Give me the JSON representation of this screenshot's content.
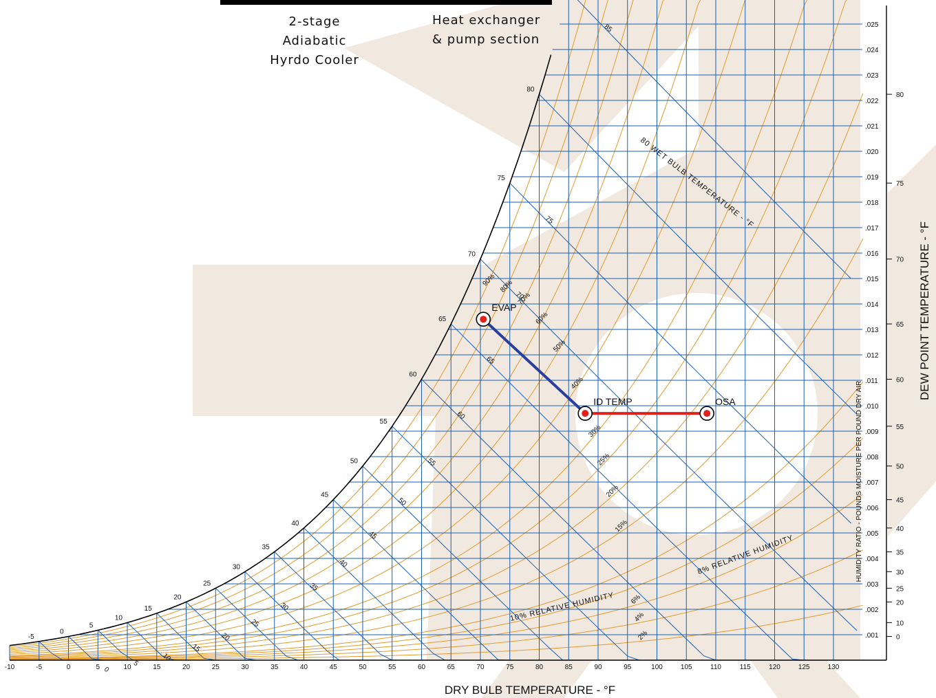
{
  "header": {
    "left_line1": "2-stage Adiabatic",
    "left_line2": "Hyrdo Cooler",
    "right_line1": "Heat exchanger",
    "right_line2": "& pump section"
  },
  "chart_data": {
    "type": "psychrometric",
    "xlabel": "DRY BULB TEMPERATURE - °F",
    "ylabel_right": "DEW POINT TEMPERATURE - °F",
    "ylabel_ratio": "HUMIDITY RATIO - POUNDS MOISTURE PER POUND DRY AIR",
    "wet_bulb_label": "80 WET BULB TEMPERATURE - °F",
    "rh_label": "10% RELATIVE HUMIDITY",
    "rh_label_8": "8% RELATIVE HUMIDITY",
    "xlim": [
      -10,
      135
    ],
    "ylim": [
      0,
      0.0262
    ],
    "x_ticks": [
      "-10",
      "-5",
      "0",
      "5",
      "10",
      "15",
      "20",
      "25",
      "30",
      "35",
      "40",
      "45",
      "50",
      "55",
      "60",
      "65",
      "70",
      "75",
      "80",
      "85",
      "90",
      "95",
      "100",
      "105",
      "110",
      "115",
      "120",
      "125",
      "130"
    ],
    "humidity_ratio_ticks": [
      ".001",
      ".002",
      ".003",
      ".004",
      ".005",
      ".006",
      ".007",
      ".008",
      ".009",
      ".010",
      ".011",
      ".012",
      ".013",
      ".014",
      ".015",
      ".016",
      ".017",
      ".018",
      ".019",
      ".020",
      ".021",
      ".022",
      ".023",
      ".024",
      ".025"
    ],
    "dew_point_ticks": [
      "0",
      "10",
      "20",
      "25",
      "30",
      "35",
      "40",
      "45",
      "50",
      "55",
      "60",
      "65",
      "70",
      "75",
      "80"
    ],
    "saturation_labels": [
      "-5",
      "0",
      "5",
      "10",
      "15",
      "20",
      "25",
      "30",
      "35",
      "40",
      "45",
      "50",
      "55",
      "60",
      "65",
      "70",
      "75",
      "80"
    ],
    "wet_bulb_line_labels": [
      "0",
      "5",
      "10",
      "15",
      "20",
      "25",
      "30",
      "35",
      "40",
      "45",
      "50",
      "55",
      "60",
      "65",
      "70",
      "75",
      "85"
    ],
    "rh_curves": [
      2,
      4,
      6,
      8,
      10,
      15,
      20,
      25,
      30,
      40,
      50,
      60,
      70,
      80,
      90
    ],
    "rh_curve_labels": [
      "2%",
      "4%",
      "6%",
      "15%",
      "20%",
      "25%",
      "30%",
      "40%",
      "50%",
      "60%",
      "70%",
      "80%",
      "90%"
    ],
    "points": [
      {
        "name": "EVAP",
        "dry_bulb": 70.5,
        "w": 0.0134
      },
      {
        "name": "ID TEMP",
        "dry_bulb": 87.8,
        "w": 0.0097
      },
      {
        "name": "OSA",
        "dry_bulb": 108.5,
        "w": 0.0097
      }
    ],
    "processes": [
      {
        "from": "EVAP",
        "to": "ID TEMP",
        "color": "#2a3f9b"
      },
      {
        "from": "ID TEMP",
        "to": "OSA",
        "color": "#e0201b"
      }
    ],
    "colors": {
      "rh_curve": "#e39a2c",
      "grid": "#1a5fb4",
      "marker_fill": "#e0201b",
      "watermark": "#f1e9e0"
    }
  }
}
